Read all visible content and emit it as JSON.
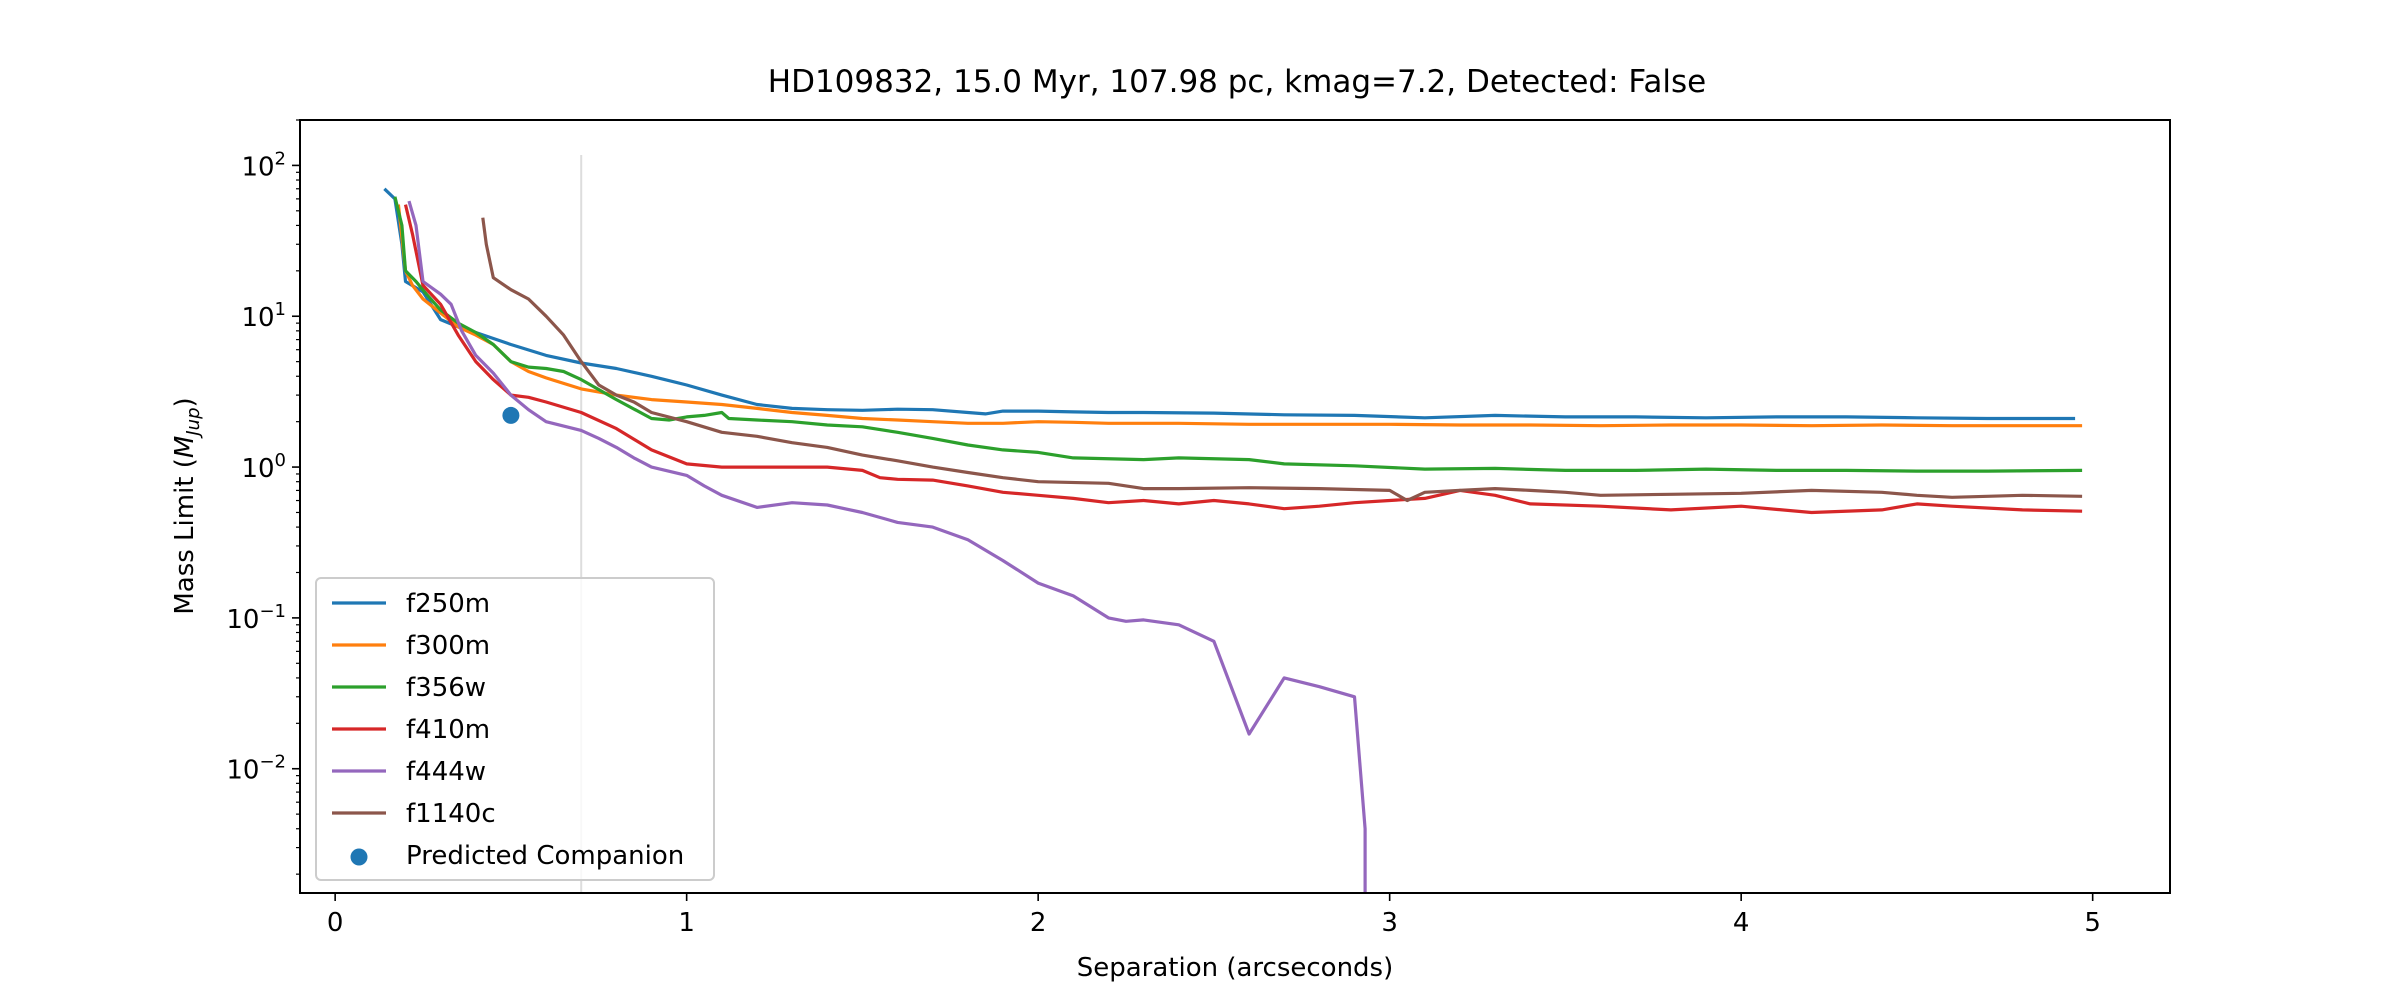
{
  "chart_data": {
    "type": "line",
    "title": "HD109832, 15.0 Myr, 107.98 pc, kmag=7.2, Detected: False",
    "xlabel": "Separation (arcseconds)",
    "ylabel": "Mass Limit (M_Jup)",
    "ylabel_prefix": "Mass Limit (",
    "ylabel_symbol": "M",
    "ylabel_subscript": "Jup",
    "ylabel_suffix": ")",
    "xlim": [
      -0.1,
      5.22
    ],
    "ylim": [
      0.0015,
      200
    ],
    "yscale": "log",
    "x_ticks": [
      0,
      1,
      2,
      3,
      4,
      5
    ],
    "x_tick_labels": [
      "0",
      "1",
      "2",
      "3",
      "4",
      "5"
    ],
    "y_ticks": [
      {
        "value": 100,
        "base": "10",
        "exp": "2"
      },
      {
        "value": 10,
        "base": "10",
        "exp": "1"
      },
      {
        "value": 1,
        "base": "10",
        "exp": "0"
      },
      {
        "value": 0.1,
        "base": "10",
        "exp": "−1"
      },
      {
        "value": 0.01,
        "base": "10",
        "exp": "−2"
      }
    ],
    "grid": false,
    "legend_position": "lower-left",
    "vline": {
      "x": 0.7,
      "color": "#dddddd"
    },
    "series": [
      {
        "name": "f250m",
        "color": "#1f77b4",
        "points": [
          [
            0.14,
            70
          ],
          [
            0.17,
            60
          ],
          [
            0.19,
            30
          ],
          [
            0.2,
            17
          ],
          [
            0.25,
            14.5
          ],
          [
            0.3,
            9.5
          ],
          [
            0.35,
            8.5
          ],
          [
            0.4,
            7.8
          ],
          [
            0.5,
            6.5
          ],
          [
            0.6,
            5.5
          ],
          [
            0.7,
            4.9
          ],
          [
            0.8,
            4.5
          ],
          [
            0.9,
            4
          ],
          [
            1.0,
            3.5
          ],
          [
            1.1,
            3.0
          ],
          [
            1.2,
            2.6
          ],
          [
            1.3,
            2.45
          ],
          [
            1.4,
            2.4
          ],
          [
            1.5,
            2.38
          ],
          [
            1.6,
            2.42
          ],
          [
            1.7,
            2.4
          ],
          [
            1.8,
            2.3
          ],
          [
            1.85,
            2.25
          ],
          [
            1.9,
            2.35
          ],
          [
            2.0,
            2.35
          ],
          [
            2.1,
            2.32
          ],
          [
            2.2,
            2.3
          ],
          [
            2.3,
            2.3
          ],
          [
            2.5,
            2.28
          ],
          [
            2.7,
            2.22
          ],
          [
            2.9,
            2.2
          ],
          [
            3.1,
            2.12
          ],
          [
            3.3,
            2.2
          ],
          [
            3.5,
            2.15
          ],
          [
            3.7,
            2.15
          ],
          [
            3.9,
            2.12
          ],
          [
            4.1,
            2.15
          ],
          [
            4.3,
            2.15
          ],
          [
            4.5,
            2.12
          ],
          [
            4.7,
            2.1
          ],
          [
            4.95,
            2.1
          ]
        ]
      },
      {
        "name": "f300m",
        "color": "#ff7f0e",
        "points": [
          [
            0.18,
            55
          ],
          [
            0.2,
            20
          ],
          [
            0.22,
            16
          ],
          [
            0.25,
            13
          ],
          [
            0.3,
            10.5
          ],
          [
            0.35,
            8.5
          ],
          [
            0.4,
            7.5
          ],
          [
            0.45,
            6.5
          ],
          [
            0.5,
            5
          ],
          [
            0.55,
            4.3
          ],
          [
            0.6,
            3.9
          ],
          [
            0.7,
            3.3
          ],
          [
            0.8,
            3.0
          ],
          [
            0.9,
            2.8
          ],
          [
            1.0,
            2.7
          ],
          [
            1.1,
            2.6
          ],
          [
            1.2,
            2.45
          ],
          [
            1.3,
            2.3
          ],
          [
            1.4,
            2.2
          ],
          [
            1.5,
            2.1
          ],
          [
            1.6,
            2.05
          ],
          [
            1.7,
            2.0
          ],
          [
            1.8,
            1.95
          ],
          [
            1.9,
            1.95
          ],
          [
            2.0,
            2.0
          ],
          [
            2.1,
            1.98
          ],
          [
            2.2,
            1.95
          ],
          [
            2.4,
            1.95
          ],
          [
            2.6,
            1.92
          ],
          [
            2.8,
            1.92
          ],
          [
            3.0,
            1.92
          ],
          [
            3.2,
            1.9
          ],
          [
            3.4,
            1.9
          ],
          [
            3.6,
            1.88
          ],
          [
            3.8,
            1.9
          ],
          [
            4.0,
            1.9
          ],
          [
            4.2,
            1.88
          ],
          [
            4.4,
            1.9
          ],
          [
            4.6,
            1.88
          ],
          [
            4.8,
            1.88
          ],
          [
            4.97,
            1.88
          ]
        ]
      },
      {
        "name": "f356w",
        "color": "#2ca02c",
        "points": [
          [
            0.17,
            62
          ],
          [
            0.19,
            40
          ],
          [
            0.2,
            20
          ],
          [
            0.23,
            17
          ],
          [
            0.26,
            14
          ],
          [
            0.3,
            11
          ],
          [
            0.35,
            9
          ],
          [
            0.4,
            7.8
          ],
          [
            0.45,
            6.5
          ],
          [
            0.5,
            5
          ],
          [
            0.55,
            4.6
          ],
          [
            0.6,
            4.5
          ],
          [
            0.65,
            4.3
          ],
          [
            0.7,
            3.8
          ],
          [
            0.8,
            2.8
          ],
          [
            0.9,
            2.1
          ],
          [
            0.95,
            2.05
          ],
          [
            1.0,
            2.15
          ],
          [
            1.05,
            2.2
          ],
          [
            1.1,
            2.3
          ],
          [
            1.12,
            2.1
          ],
          [
            1.2,
            2.05
          ],
          [
            1.3,
            2.0
          ],
          [
            1.4,
            1.9
          ],
          [
            1.5,
            1.85
          ],
          [
            1.6,
            1.7
          ],
          [
            1.7,
            1.55
          ],
          [
            1.8,
            1.4
          ],
          [
            1.9,
            1.3
          ],
          [
            2.0,
            1.25
          ],
          [
            2.1,
            1.15
          ],
          [
            2.3,
            1.12
          ],
          [
            2.4,
            1.15
          ],
          [
            2.6,
            1.12
          ],
          [
            2.7,
            1.05
          ],
          [
            2.9,
            1.02
          ],
          [
            3.1,
            0.97
          ],
          [
            3.3,
            0.98
          ],
          [
            3.5,
            0.95
          ],
          [
            3.7,
            0.95
          ],
          [
            3.9,
            0.97
          ],
          [
            4.1,
            0.95
          ],
          [
            4.3,
            0.95
          ],
          [
            4.5,
            0.94
          ],
          [
            4.7,
            0.94
          ],
          [
            4.97,
            0.95
          ]
        ]
      },
      {
        "name": "f410m",
        "color": "#d62728",
        "points": [
          [
            0.2,
            55
          ],
          [
            0.22,
            35
          ],
          [
            0.25,
            16
          ],
          [
            0.3,
            12
          ],
          [
            0.35,
            7.5
          ],
          [
            0.4,
            5
          ],
          [
            0.45,
            3.8
          ],
          [
            0.5,
            3
          ],
          [
            0.55,
            2.9
          ],
          [
            0.6,
            2.7
          ],
          [
            0.7,
            2.3
          ],
          [
            0.8,
            1.8
          ],
          [
            0.9,
            1.3
          ],
          [
            1.0,
            1.05
          ],
          [
            1.1,
            1.0
          ],
          [
            1.2,
            1.0
          ],
          [
            1.3,
            1.0
          ],
          [
            1.4,
            1.0
          ],
          [
            1.5,
            0.95
          ],
          [
            1.55,
            0.85
          ],
          [
            1.6,
            0.83
          ],
          [
            1.7,
            0.82
          ],
          [
            1.8,
            0.75
          ],
          [
            1.9,
            0.68
          ],
          [
            2.0,
            0.65
          ],
          [
            2.1,
            0.62
          ],
          [
            2.2,
            0.58
          ],
          [
            2.3,
            0.6
          ],
          [
            2.4,
            0.57
          ],
          [
            2.5,
            0.6
          ],
          [
            2.6,
            0.57
          ],
          [
            2.7,
            0.53
          ],
          [
            2.8,
            0.55
          ],
          [
            2.9,
            0.58
          ],
          [
            3.0,
            0.6
          ],
          [
            3.1,
            0.62
          ],
          [
            3.2,
            0.7
          ],
          [
            3.3,
            0.65
          ],
          [
            3.4,
            0.57
          ],
          [
            3.6,
            0.55
          ],
          [
            3.8,
            0.52
          ],
          [
            4.0,
            0.55
          ],
          [
            4.2,
            0.5
          ],
          [
            4.4,
            0.52
          ],
          [
            4.5,
            0.57
          ],
          [
            4.6,
            0.55
          ],
          [
            4.8,
            0.52
          ],
          [
            4.97,
            0.51
          ]
        ]
      },
      {
        "name": "f444w",
        "color": "#9467bd",
        "points": [
          [
            0.21,
            58
          ],
          [
            0.23,
            40
          ],
          [
            0.25,
            17
          ],
          [
            0.3,
            14
          ],
          [
            0.33,
            12
          ],
          [
            0.36,
            8
          ],
          [
            0.4,
            5.5
          ],
          [
            0.45,
            4.2
          ],
          [
            0.5,
            3.0
          ],
          [
            0.55,
            2.4
          ],
          [
            0.6,
            2.0
          ],
          [
            0.7,
            1.75
          ],
          [
            0.75,
            1.55
          ],
          [
            0.8,
            1.35
          ],
          [
            0.85,
            1.15
          ],
          [
            0.9,
            1.0
          ],
          [
            1.0,
            0.88
          ],
          [
            1.05,
            0.75
          ],
          [
            1.1,
            0.65
          ],
          [
            1.2,
            0.54
          ],
          [
            1.3,
            0.58
          ],
          [
            1.4,
            0.56
          ],
          [
            1.5,
            0.5
          ],
          [
            1.6,
            0.43
          ],
          [
            1.7,
            0.4
          ],
          [
            1.8,
            0.33
          ],
          [
            1.9,
            0.24
          ],
          [
            2.0,
            0.17
          ],
          [
            2.1,
            0.14
          ],
          [
            2.2,
            0.1
          ],
          [
            2.25,
            0.095
          ],
          [
            2.3,
            0.097
          ],
          [
            2.4,
            0.09
          ],
          [
            2.5,
            0.07
          ],
          [
            2.6,
            0.017
          ],
          [
            2.7,
            0.04
          ],
          [
            2.8,
            0.035
          ],
          [
            2.9,
            0.03
          ],
          [
            2.93,
            0.004
          ],
          [
            2.93,
            0.0015
          ]
        ]
      },
      {
        "name": "f1140c",
        "color": "#8c564b",
        "points": [
          [
            0.42,
            45
          ],
          [
            0.43,
            30
          ],
          [
            0.45,
            18
          ],
          [
            0.5,
            15
          ],
          [
            0.55,
            13
          ],
          [
            0.6,
            10
          ],
          [
            0.65,
            7.5
          ],
          [
            0.7,
            5
          ],
          [
            0.75,
            3.5
          ],
          [
            0.8,
            3.0
          ],
          [
            0.85,
            2.7
          ],
          [
            0.9,
            2.3
          ],
          [
            1.0,
            2.0
          ],
          [
            1.1,
            1.7
          ],
          [
            1.2,
            1.6
          ],
          [
            1.3,
            1.45
          ],
          [
            1.4,
            1.35
          ],
          [
            1.5,
            1.2
          ],
          [
            1.6,
            1.1
          ],
          [
            1.7,
            1.0
          ],
          [
            1.8,
            0.92
          ],
          [
            1.9,
            0.85
          ],
          [
            2.0,
            0.8
          ],
          [
            2.2,
            0.78
          ],
          [
            2.3,
            0.72
          ],
          [
            2.4,
            0.72
          ],
          [
            2.6,
            0.73
          ],
          [
            2.8,
            0.72
          ],
          [
            3.0,
            0.7
          ],
          [
            3.05,
            0.6
          ],
          [
            3.1,
            0.68
          ],
          [
            3.2,
            0.7
          ],
          [
            3.3,
            0.72
          ],
          [
            3.4,
            0.7
          ],
          [
            3.5,
            0.68
          ],
          [
            3.6,
            0.65
          ],
          [
            3.8,
            0.66
          ],
          [
            4.0,
            0.67
          ],
          [
            4.2,
            0.7
          ],
          [
            4.4,
            0.68
          ],
          [
            4.5,
            0.65
          ],
          [
            4.6,
            0.63
          ],
          [
            4.8,
            0.65
          ],
          [
            4.97,
            0.64
          ]
        ]
      }
    ],
    "scatter": [
      {
        "name": "Predicted Companion",
        "color": "#1f77b4",
        "points": [
          [
            0.5,
            2.2
          ]
        ]
      }
    ]
  }
}
